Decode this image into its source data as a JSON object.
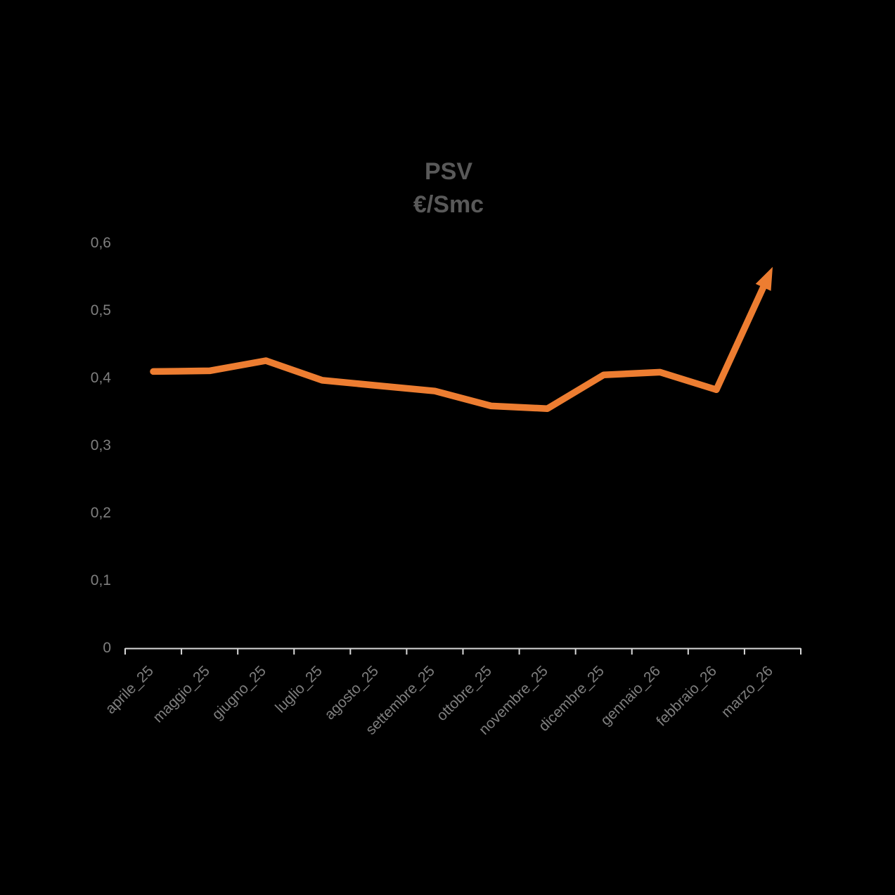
{
  "background_color": "#000000",
  "chart_data": {
    "type": "line",
    "title": "PSV",
    "subtitle": "€/Smc",
    "title_color": "#595959",
    "categories": [
      "aprile_25",
      "maggio_25",
      "giugno_25",
      "luglio_25",
      "agosto_25",
      "settembre_25",
      "ottobre_25",
      "novembre_25",
      "dicembre_25",
      "gennaio_26",
      "febbraio_26",
      "marzo_26"
    ],
    "series": [
      {
        "name": "PSV",
        "values": [
          0.41,
          0.411,
          0.426,
          0.397,
          0.389,
          0.381,
          0.359,
          0.355,
          0.405,
          0.409,
          0.383,
          0.565
        ],
        "color": "#ED7D31",
        "line_width": 9.5,
        "end_arrow": true
      }
    ],
    "xlabel": "",
    "ylabel": "",
    "ylim": [
      0,
      0.6
    ],
    "ytick_step": 0.1,
    "ytick_labels": [
      "0",
      "0,1",
      "0,2",
      "0,3",
      "0,4",
      "0,5",
      "0,6"
    ],
    "grid": false,
    "legend": "none",
    "axis_line_color": "#D9D9D9",
    "label_color": "#7F7F7F"
  }
}
